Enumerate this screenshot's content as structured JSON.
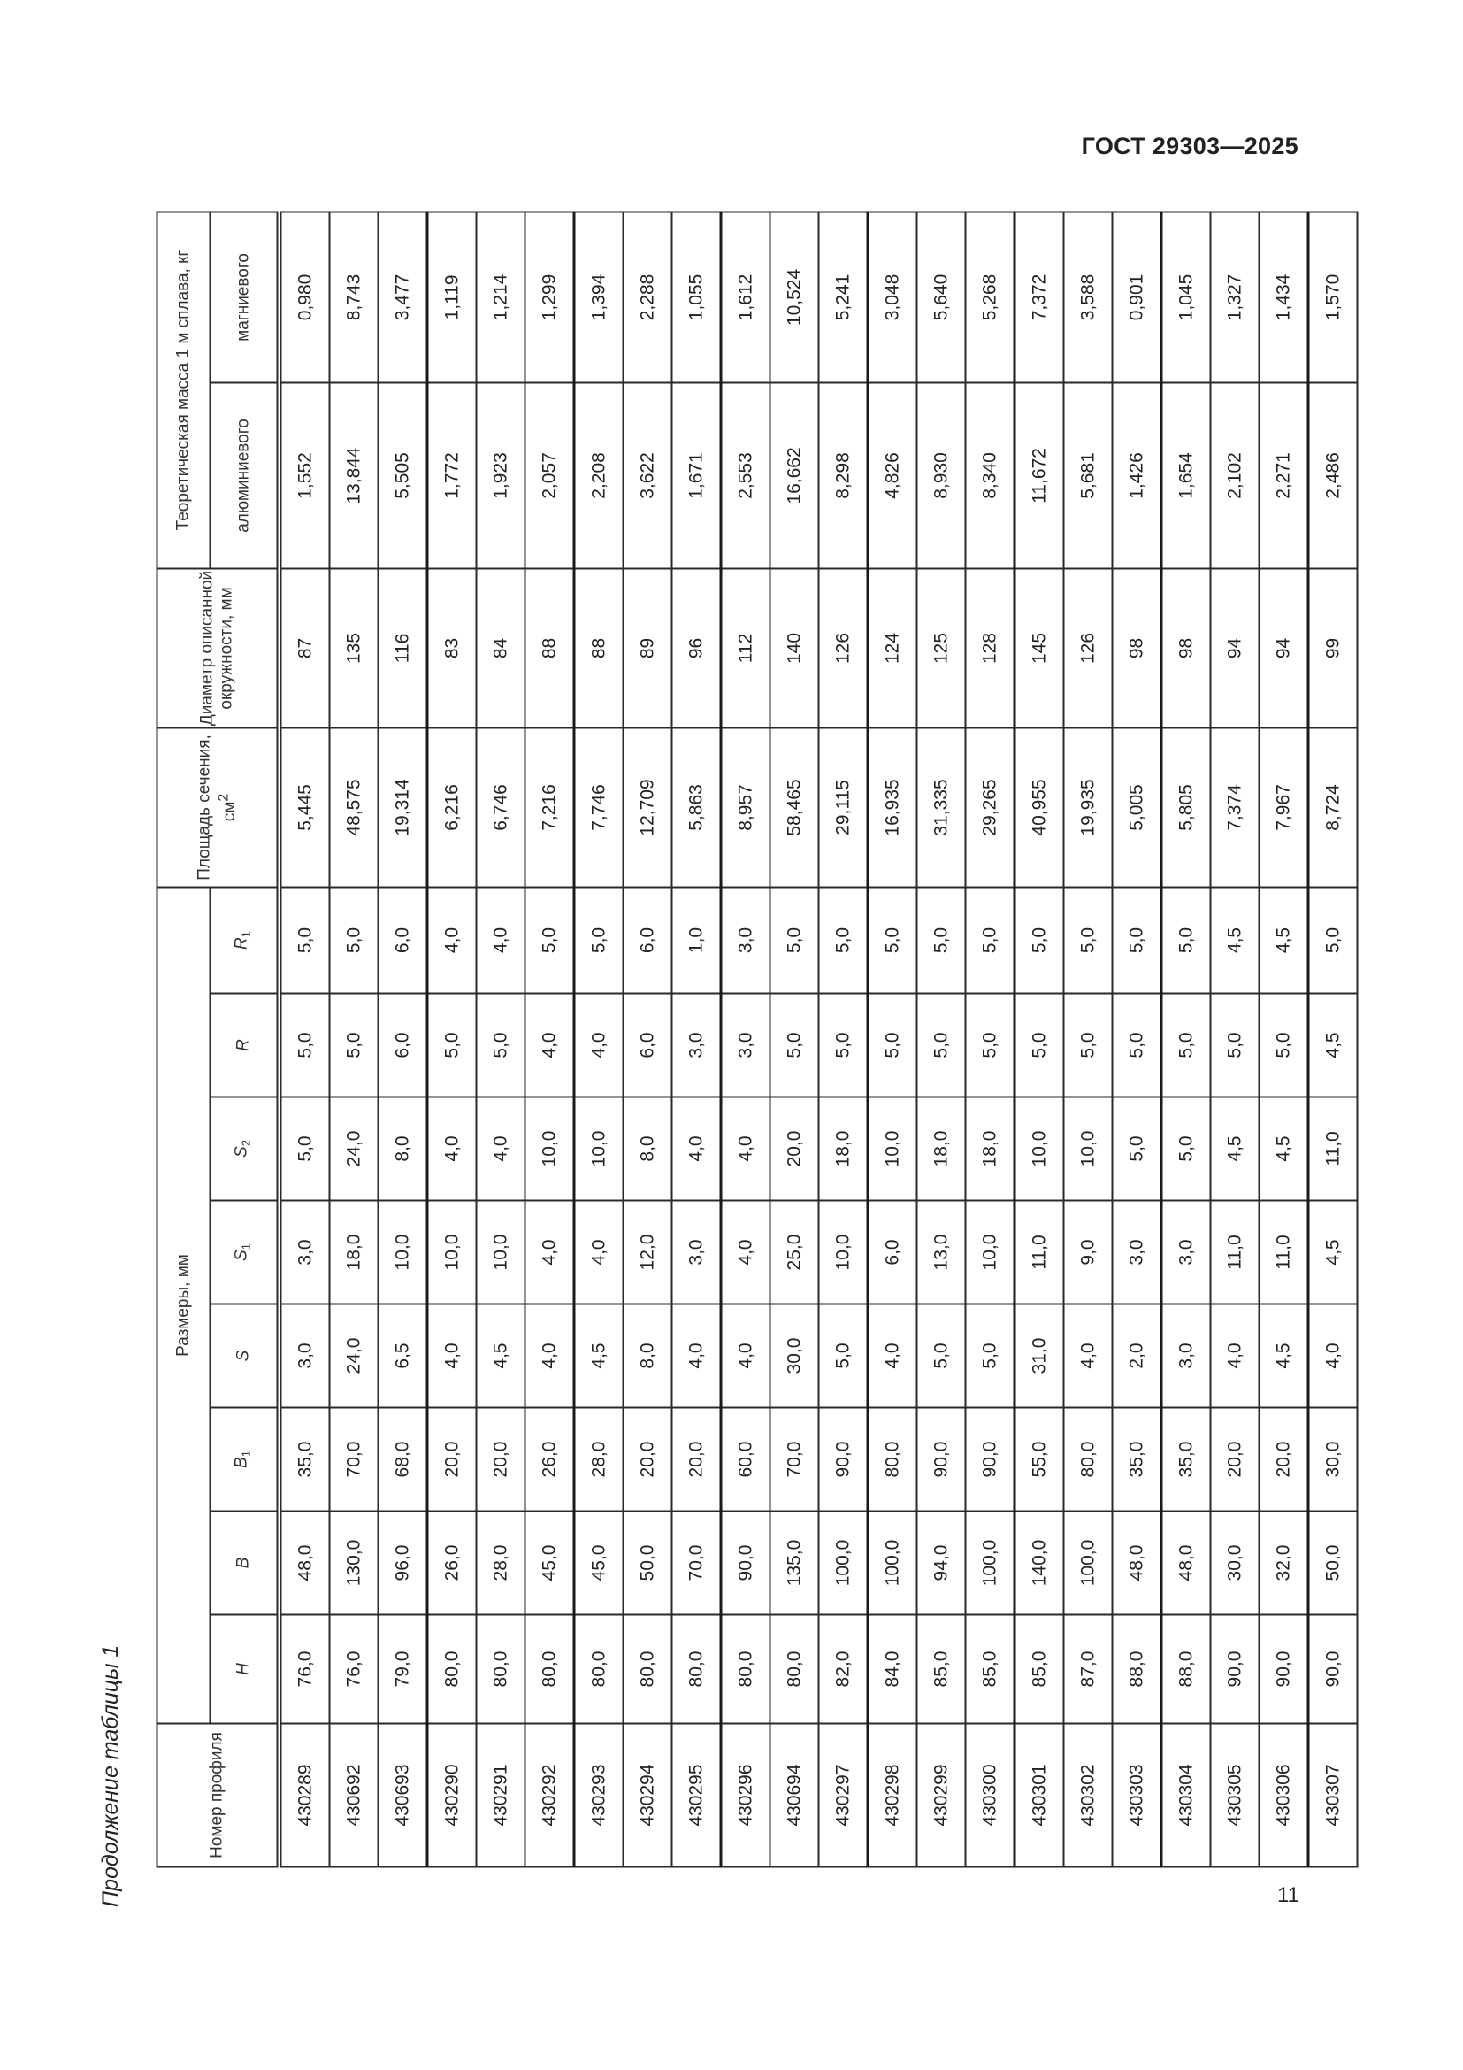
{
  "document": {
    "header": "ГОСТ 29303—2025",
    "page_number": "11",
    "caption": "Продолжение таблицы 1"
  },
  "table": {
    "headers": {
      "profile": "Номер профиля",
      "dimensions": "Размеры, мм",
      "area": "Площадь сечения, см",
      "area_sup": "2",
      "diameter": "Диаметр описанной окружности, мм",
      "mass": "Теоретическая масса 1 м сплава, кг",
      "aluminum": "алюминиевого",
      "magnesium": "магниевого",
      "dims": [
        {
          "base": "H",
          "sub": ""
        },
        {
          "base": "B",
          "sub": ""
        },
        {
          "base": "B",
          "sub": "1"
        },
        {
          "base": "S",
          "sub": ""
        },
        {
          "base": "S",
          "sub": "1"
        },
        {
          "base": "S",
          "sub": "2"
        },
        {
          "base": "R",
          "sub": ""
        },
        {
          "base": "R",
          "sub": "1"
        }
      ]
    },
    "rows": [
      [
        "430289",
        "76,0",
        "48,0",
        "35,0",
        "3,0",
        "3,0",
        "5,0",
        "5,0",
        "5,0",
        "5,445",
        "87",
        "1,552",
        "0,980"
      ],
      [
        "430692",
        "76,0",
        "130,0",
        "70,0",
        "24,0",
        "18,0",
        "24,0",
        "5,0",
        "5,0",
        "48,575",
        "135",
        "13,844",
        "8,743"
      ],
      [
        "430693",
        "79,0",
        "96,0",
        "68,0",
        "6,5",
        "10,0",
        "8,0",
        "6,0",
        "6,0",
        "19,314",
        "116",
        "5,505",
        "3,477"
      ],
      [
        "430290",
        "80,0",
        "26,0",
        "20,0",
        "4,0",
        "10,0",
        "4,0",
        "5,0",
        "4,0",
        "6,216",
        "83",
        "1,772",
        "1,119"
      ],
      [
        "430291",
        "80,0",
        "28,0",
        "20,0",
        "4,5",
        "10,0",
        "4,0",
        "5,0",
        "4,0",
        "6,746",
        "84",
        "1,923",
        "1,214"
      ],
      [
        "430292",
        "80,0",
        "45,0",
        "26,0",
        "4,0",
        "4,0",
        "10,0",
        "4,0",
        "5,0",
        "7,216",
        "88",
        "2,057",
        "1,299"
      ],
      [
        "430293",
        "80,0",
        "45,0",
        "28,0",
        "4,5",
        "4,0",
        "10,0",
        "4,0",
        "5,0",
        "7,746",
        "88",
        "2,208",
        "1,394"
      ],
      [
        "430294",
        "80,0",
        "50,0",
        "20,0",
        "8,0",
        "12,0",
        "8,0",
        "6,0",
        "6,0",
        "12,709",
        "89",
        "3,622",
        "2,288"
      ],
      [
        "430295",
        "80,0",
        "70,0",
        "20,0",
        "4,0",
        "3,0",
        "4,0",
        "3,0",
        "1,0",
        "5,863",
        "96",
        "1,671",
        "1,055"
      ],
      [
        "430296",
        "80,0",
        "90,0",
        "60,0",
        "4,0",
        "4,0",
        "4,0",
        "3,0",
        "3,0",
        "8,957",
        "112",
        "2,553",
        "1,612"
      ],
      [
        "430694",
        "80,0",
        "135,0",
        "70,0",
        "30,0",
        "25,0",
        "20,0",
        "5,0",
        "5,0",
        "58,465",
        "140",
        "16,662",
        "10,524"
      ],
      [
        "430297",
        "82,0",
        "100,0",
        "90,0",
        "5,0",
        "10,0",
        "18,0",
        "5,0",
        "5,0",
        "29,115",
        "126",
        "8,298",
        "5,241"
      ],
      [
        "430298",
        "84,0",
        "100,0",
        "80,0",
        "4,0",
        "6,0",
        "10,0",
        "5,0",
        "5,0",
        "16,935",
        "124",
        "4,826",
        "3,048"
      ],
      [
        "430299",
        "85,0",
        "94,0",
        "90,0",
        "5,0",
        "13,0",
        "18,0",
        "5,0",
        "5,0",
        "31,335",
        "125",
        "8,930",
        "5,640"
      ],
      [
        "430300",
        "85,0",
        "100,0",
        "90,0",
        "5,0",
        "10,0",
        "18,0",
        "5,0",
        "5,0",
        "29,265",
        "128",
        "8,340",
        "5,268"
      ],
      [
        "430301",
        "85,0",
        "140,0",
        "55,0",
        "31,0",
        "11,0",
        "10,0",
        "5,0",
        "5,0",
        "40,955",
        "145",
        "11,672",
        "7,372"
      ],
      [
        "430302",
        "87,0",
        "100,0",
        "80,0",
        "4,0",
        "9,0",
        "10,0",
        "5,0",
        "5,0",
        "19,935",
        "126",
        "5,681",
        "3,588"
      ],
      [
        "430303",
        "88,0",
        "48,0",
        "35,0",
        "2,0",
        "3,0",
        "5,0",
        "5,0",
        "5,0",
        "5,005",
        "98",
        "1,426",
        "0,901"
      ],
      [
        "430304",
        "88,0",
        "48,0",
        "35,0",
        "3,0",
        "3,0",
        "5,0",
        "5,0",
        "5,0",
        "5,805",
        "98",
        "1,654",
        "1,045"
      ],
      [
        "430305",
        "90,0",
        "30,0",
        "20,0",
        "4,0",
        "11,0",
        "4,5",
        "5,0",
        "4,5",
        "7,374",
        "94",
        "2,102",
        "1,327"
      ],
      [
        "430306",
        "90,0",
        "32,0",
        "20,0",
        "4,5",
        "11,0",
        "4,5",
        "5,0",
        "4,5",
        "7,967",
        "94",
        "2,271",
        "1,434"
      ],
      [
        "430307",
        "90,0",
        "50,0",
        "30,0",
        "4,0",
        "4,5",
        "11,0",
        "4,5",
        "5,0",
        "8,724",
        "99",
        "2,486",
        "1,570"
      ]
    ]
  }
}
